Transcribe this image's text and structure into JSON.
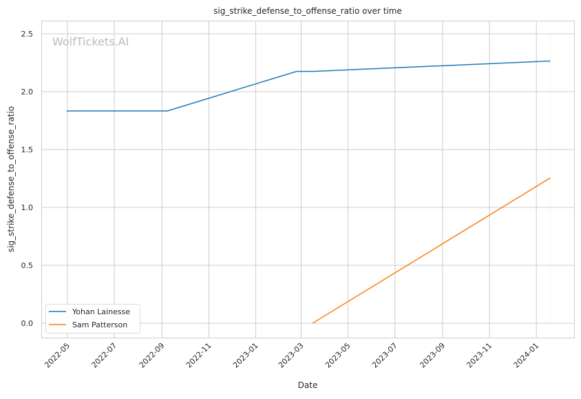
{
  "chart_data": {
    "type": "line",
    "title": "sig_strike_defense_to_offense_ratio over time",
    "xlabel": "Date",
    "ylabel": "sig_strike_defense_to_offense_ratio",
    "watermark": "WolfTickets.AI",
    "xlim": [
      "2022-03-28",
      "2024-02-20"
    ],
    "ylim": [
      -0.125,
      2.613
    ],
    "x_ticks": [
      "2022-05",
      "2022-07",
      "2022-09",
      "2022-11",
      "2023-01",
      "2023-03",
      "2023-05",
      "2023-07",
      "2023-09",
      "2023-11",
      "2024-01"
    ],
    "y_ticks": [
      0.0,
      0.5,
      1.0,
      1.5,
      2.0,
      2.5
    ],
    "grid": true,
    "legend_position": "lower-left",
    "series": [
      {
        "name": "Yohan Lainesse",
        "color": "#1f77b4",
        "x": [
          "2022-04-30",
          "2022-09-08",
          "2023-02-23",
          "2023-03-16",
          "2024-01-19"
        ],
        "y": [
          1.833,
          1.833,
          2.175,
          2.175,
          2.265
        ]
      },
      {
        "name": "Sam Patterson",
        "color": "#ff7f0e",
        "x": [
          "2023-03-16",
          "2024-01-19"
        ],
        "y": [
          0.0,
          1.255
        ]
      }
    ]
  }
}
